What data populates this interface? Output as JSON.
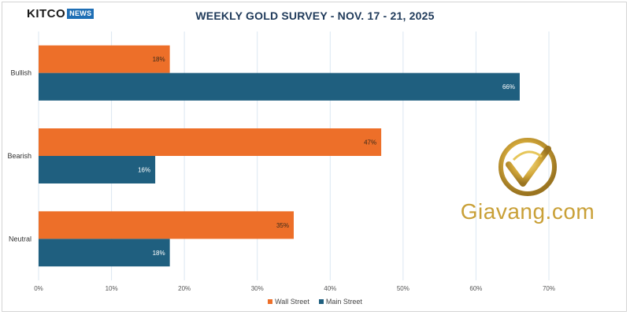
{
  "header": {
    "logo_text": "KITCO",
    "logo_badge": "NEWS"
  },
  "colors": {
    "wall_street": "#ed6f29",
    "main_street": "#1f5f7f",
    "grid": "#dbe7f2",
    "watermark": "#c9a037"
  },
  "watermark": {
    "text": "Giavang.com"
  },
  "chart_data": {
    "type": "bar",
    "orientation": "horizontal",
    "title": "WEEKLY GOLD SURVEY - NOV. 17 - 21, 2025",
    "categories": [
      "Bullish",
      "Bearish",
      "Neutral"
    ],
    "series": [
      {
        "name": "Wall Street",
        "values": [
          18,
          47,
          35
        ],
        "labels": [
          "18%",
          "47%",
          "35%"
        ]
      },
      {
        "name": "Main Street",
        "values": [
          66,
          16,
          18
        ],
        "labels": [
          "66%",
          "16%",
          "18%"
        ]
      }
    ],
    "xlim": [
      0,
      70
    ],
    "xticks": [
      0,
      10,
      20,
      30,
      40,
      50,
      60,
      70
    ],
    "xtick_labels": [
      "0%",
      "10%",
      "20%",
      "30%",
      "40%",
      "50%",
      "60%",
      "70%"
    ],
    "legend_position": "bottom",
    "grid": true
  }
}
